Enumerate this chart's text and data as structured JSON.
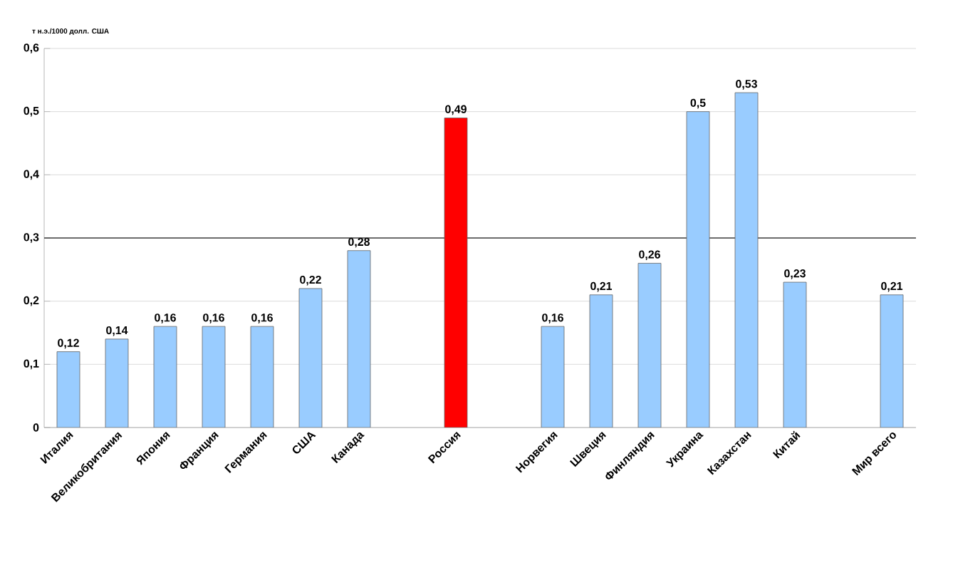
{
  "chart_data": {
    "type": "bar",
    "ylabel": "т н.э./1000 долл. США",
    "categories": [
      "Италия",
      "Великобритания",
      "Япония",
      "Франция",
      "Германия",
      "США",
      "Канада",
      null,
      "Россия",
      null,
      "Норвегия",
      "Швеция",
      "Финляндия",
      "Украина",
      "Казахстан",
      "Китай",
      null,
      "Мир всего"
    ],
    "values": [
      0.12,
      0.14,
      0.16,
      0.16,
      0.16,
      0.22,
      0.28,
      null,
      0.49,
      null,
      0.16,
      0.21,
      0.26,
      0.5,
      0.53,
      0.23,
      null,
      0.21
    ],
    "value_labels": [
      "0,12",
      "0,14",
      "0,16",
      "0,16",
      "0,16",
      "0,22",
      "0,28",
      null,
      "0,49",
      null,
      "0,16",
      "0,21",
      "0,26",
      "0,5",
      "0,53",
      "0,23",
      null,
      "0,21"
    ],
    "colors": [
      "#99ccff",
      "#99ccff",
      "#99ccff",
      "#99ccff",
      "#99ccff",
      "#99ccff",
      "#99ccff",
      null,
      "#ff0000",
      null,
      "#99ccff",
      "#99ccff",
      "#99ccff",
      "#99ccff",
      "#99ccff",
      "#99ccff",
      null,
      "#99ccff"
    ],
    "ylim": [
      0,
      0.6
    ],
    "yticks": [
      {
        "value": 0,
        "label": "0"
      },
      {
        "value": 0.1,
        "label": "0,1"
      },
      {
        "value": 0.2,
        "label": "0,2"
      },
      {
        "value": 0.3,
        "label": "0,3"
      },
      {
        "value": 0.4,
        "label": "0,4"
      },
      {
        "value": 0.5,
        "label": "0,5"
      },
      {
        "value": 0.6,
        "label": "0,6"
      }
    ],
    "grid": "y",
    "ref_lines": [
      {
        "axis": "y",
        "value": 0.3,
        "color": "#404040"
      }
    ]
  }
}
